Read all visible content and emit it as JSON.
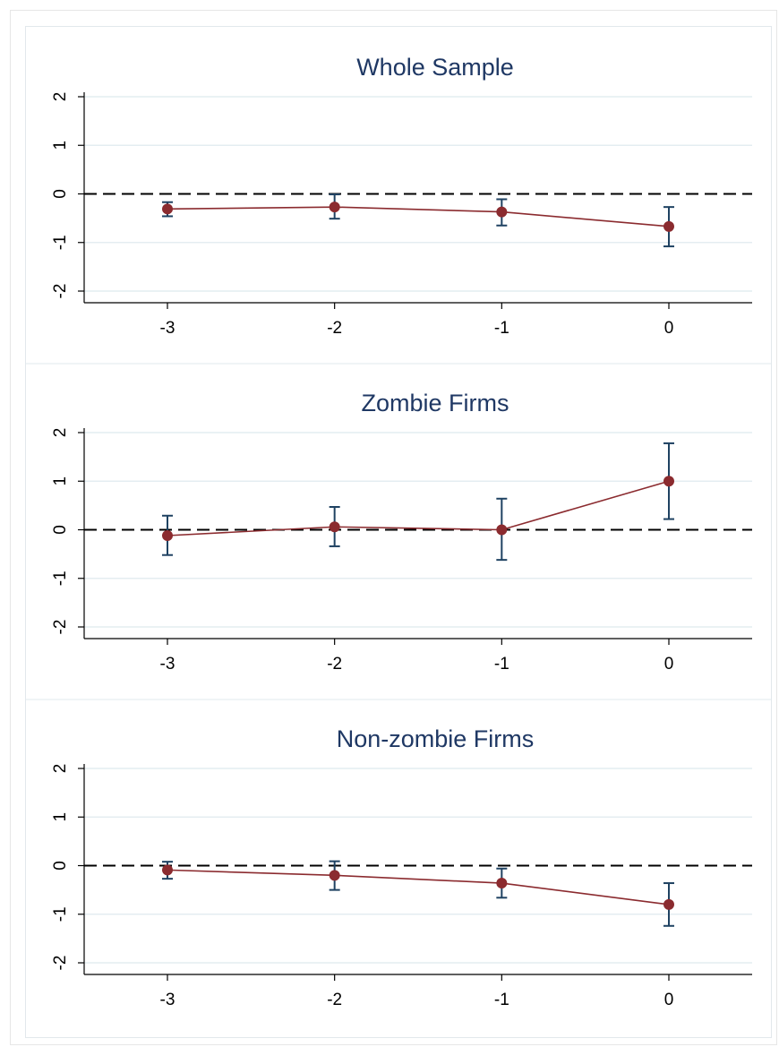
{
  "chart_data": [
    {
      "type": "line",
      "title": "Whole Sample",
      "x": [
        -3,
        -2,
        -1,
        0
      ],
      "xticks": [
        -3,
        -2,
        -1,
        0
      ],
      "yticks": [
        -2,
        -1,
        0,
        1,
        2
      ],
      "ylim": [
        -2.3,
        2.3
      ],
      "xlim": [
        -3.5,
        0.5
      ],
      "reference_line_y": 0,
      "grid": true,
      "series": [
        {
          "estimates": [
            -0.31,
            -0.27,
            -0.37,
            -0.67
          ],
          "ci_low": [
            -0.46,
            -0.51,
            -0.65,
            -1.08
          ],
          "ci_high": [
            -0.17,
            -0.01,
            -0.11,
            -0.27
          ]
        }
      ]
    },
    {
      "type": "line",
      "title": "Zombie Firms",
      "x": [
        -3,
        -2,
        -1,
        0
      ],
      "xticks": [
        -3,
        -2,
        -1,
        0
      ],
      "yticks": [
        -2,
        -1,
        0,
        1,
        2
      ],
      "ylim": [
        -2.3,
        2.3
      ],
      "xlim": [
        -3.5,
        0.5
      ],
      "reference_line_y": 0,
      "grid": true,
      "series": [
        {
          "estimates": [
            -0.12,
            0.06,
            0.0,
            1.0
          ],
          "ci_low": [
            -0.52,
            -0.34,
            -0.62,
            0.22
          ],
          "ci_high": [
            0.29,
            0.47,
            0.64,
            1.78
          ]
        }
      ]
    },
    {
      "type": "line",
      "title": "Non-zombie Firms",
      "x": [
        -3,
        -2,
        -1,
        0
      ],
      "xticks": [
        -3,
        -2,
        -1,
        0
      ],
      "yticks": [
        -2,
        -1,
        0,
        1,
        2
      ],
      "ylim": [
        -2.3,
        2.3
      ],
      "xlim": [
        -3.5,
        0.5
      ],
      "reference_line_y": 0,
      "grid": true,
      "series": [
        {
          "estimates": [
            -0.09,
            -0.2,
            -0.36,
            -0.8
          ],
          "ci_low": [
            -0.27,
            -0.5,
            -0.66,
            -1.24
          ],
          "ci_high": [
            0.08,
            0.09,
            -0.06,
            -0.36
          ]
        }
      ]
    }
  ],
  "colors": {
    "title": "#1f3864",
    "marker": "#8b2b2f",
    "connector": "#8b2b2f",
    "ci": "#1f4262",
    "grid": "#e4edf1",
    "reference_line": "#000000",
    "axis": "#000000",
    "panel_divider": "#e2e8ec"
  }
}
